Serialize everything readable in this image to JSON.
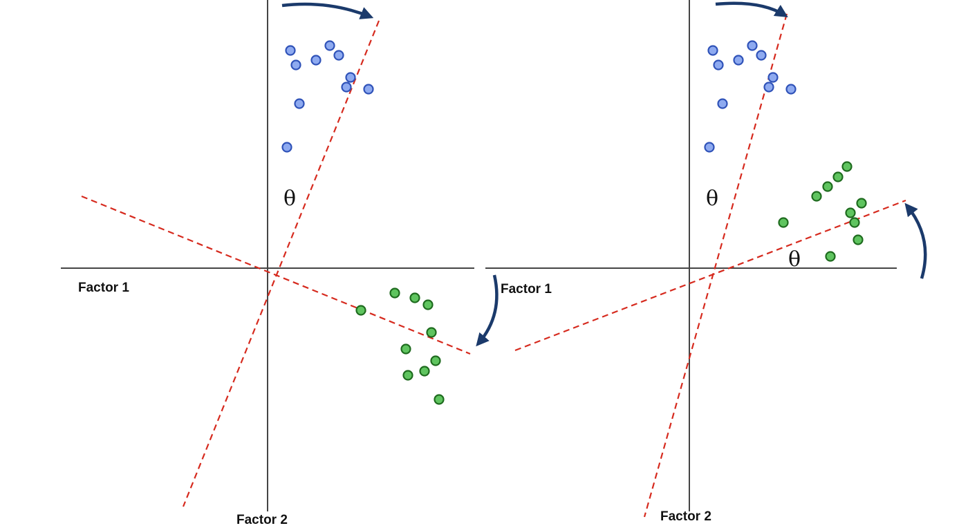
{
  "panels": [
    {
      "id": "orthogonal",
      "factor1_label": "Factor 1",
      "factor2_label": "Factor 2",
      "theta_label": "θ"
    },
    {
      "id": "oblique",
      "factor1_label": "Factor 1",
      "factor2_label": "Factor 2",
      "theta_label": "θ",
      "theta2_label": "θ"
    }
  ],
  "colors": {
    "axis": "#444444",
    "rotated_axis": "#d62a1e",
    "blue_fill": "#8eaaf0",
    "blue_stroke": "#2f52b8",
    "green_fill": "#5fc45f",
    "green_stroke": "#1e6b1e",
    "arrow": "#1b3a6b"
  },
  "icons": [
    "rotation-arrow-icon"
  ]
}
